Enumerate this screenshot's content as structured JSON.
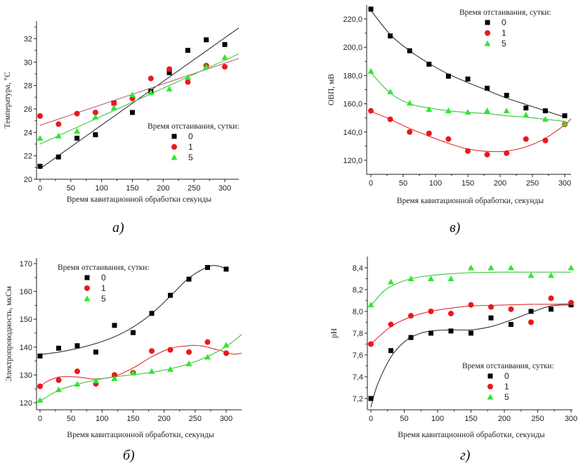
{
  "chart_data": [
    {
      "id": "a",
      "type": "scatter",
      "caption": "а)",
      "title": "",
      "xlabel": "Время кавитационной обработки секунды",
      "ylabel": "Температура, °С",
      "xlim": [
        -5,
        325
      ],
      "ylim": [
        20,
        33
      ],
      "xticks": [
        0,
        50,
        100,
        150,
        200,
        250,
        300
      ],
      "yticks": [
        20,
        22,
        24,
        26,
        28,
        30,
        32
      ],
      "ytick_labels": [
        "20",
        "22",
        "24",
        "26",
        "28",
        "30",
        "32"
      ],
      "legend": {
        "title": "Время отстаивания, сутки:",
        "placement": "center-right"
      },
      "fit": "linear",
      "x": [
        0,
        30,
        60,
        90,
        120,
        150,
        180,
        210,
        240,
        270,
        300
      ],
      "series": [
        {
          "name": "0",
          "marker": "square",
          "color": "#000000",
          "line_color": "#333333",
          "values": [
            21.1,
            21.9,
            23.5,
            23.8,
            26.5,
            25.7,
            27.5,
            29.1,
            31.0,
            31.9,
            31.5
          ],
          "fit_line": [
            [
              0,
              20.9
            ],
            [
              325,
              33.0
            ]
          ]
        },
        {
          "name": "1",
          "marker": "circle",
          "color": "#e8191c",
          "line_color": "#c06070",
          "values": [
            25.4,
            24.7,
            25.6,
            25.7,
            26.5,
            26.9,
            28.6,
            29.4,
            28.3,
            29.7,
            29.6
          ],
          "fit_line": [
            [
              0,
              24.6
            ],
            [
              325,
              30.35
            ]
          ]
        },
        {
          "name": "5",
          "marker": "triangle",
          "color": "#2ee82e",
          "line_color": "#3cc43c",
          "values": [
            23.5,
            23.7,
            24.1,
            25.3,
            26.1,
            27.2,
            27.4,
            27.7,
            28.7,
            29.6,
            30.4
          ],
          "fit_line": [
            [
              0,
              23.0
            ],
            [
              325,
              30.75
            ]
          ]
        }
      ]
    },
    {
      "id": "v",
      "type": "scatter",
      "caption": "в)",
      "title": "",
      "xlabel": "Время кавитационной обработки, секунды",
      "ylabel": "ОВП, мВ",
      "xlim": [
        -5,
        310
      ],
      "ylim": [
        110,
        230
      ],
      "xticks": [
        0,
        50,
        100,
        150,
        200,
        250,
        300
      ],
      "yticks": [
        120,
        140,
        160,
        180,
        200,
        220
      ],
      "ytick_labels": [
        "120,0",
        "140,0",
        "160,0",
        "180,0",
        "200,0",
        "220,0"
      ],
      "legend": {
        "title": "Время отстаивания, сутки:",
        "placement": "top-right"
      },
      "fit": "smooth",
      "x": [
        0,
        30,
        60,
        90,
        120,
        150,
        180,
        210,
        240,
        270,
        300
      ],
      "series": [
        {
          "name": "0",
          "marker": "square",
          "color": "#000000",
          "line_color": "#333333",
          "values": [
            227,
            208,
            197.5,
            188,
            179.5,
            177.5,
            171,
            166,
            157,
            155,
            151.5
          ],
          "fit_line": [
            [
              0,
              226
            ],
            [
              30,
              209
            ],
            [
              60,
              197.5
            ],
            [
              90,
              188.5
            ],
            [
              120,
              181
            ],
            [
              150,
              175
            ],
            [
              180,
              169.5
            ],
            [
              210,
              164
            ],
            [
              240,
              159.5
            ],
            [
              270,
              155
            ],
            [
              300,
              150.5
            ]
          ]
        },
        {
          "name": "1",
          "marker": "circle",
          "color": "#e8191c",
          "line_color": "#e03030",
          "values": [
            155,
            149,
            140,
            139,
            135,
            126.5,
            124,
            125,
            135,
            134,
            145.5
          ],
          "fit_line": [
            [
              0,
              154.5
            ],
            [
              30,
              149
            ],
            [
              60,
              142.5
            ],
            [
              90,
              137
            ],
            [
              120,
              132
            ],
            [
              150,
              128
            ],
            [
              180,
              126.3
            ],
            [
              210,
              126.5
            ],
            [
              240,
              129.5
            ],
            [
              270,
              135.5
            ],
            [
              300,
              145
            ],
            [
              310,
              149.5
            ]
          ]
        },
        {
          "name": "5",
          "marker": "triangle",
          "color": "#2ee82e",
          "line_color": "#3cc43c",
          "values": [
            183,
            168.5,
            160.5,
            156,
            155,
            154,
            155,
            155,
            152,
            149,
            146
          ],
          "fit_line": [
            [
              0,
              182
            ],
            [
              30,
              167.5
            ],
            [
              60,
              160
            ],
            [
              90,
              157
            ],
            [
              120,
              155
            ],
            [
              150,
              153.8
            ],
            [
              180,
              153
            ],
            [
              210,
              151.5
            ],
            [
              240,
              150.5
            ],
            [
              270,
              149
            ],
            [
              300,
              147.5
            ]
          ]
        }
      ]
    },
    {
      "id": "b",
      "type": "scatter",
      "caption": "б)",
      "title": "",
      "xlabel": "Время кавитационной обработки, секунды",
      "ylabel": "Электропроводность, мкСм",
      "xlim": [
        -5,
        325
      ],
      "ylim": [
        117,
        172
      ],
      "xticks": [
        0,
        50,
        100,
        150,
        200,
        250,
        300
      ],
      "yticks": [
        120,
        130,
        140,
        150,
        160,
        170
      ],
      "ytick_labels": [
        "120",
        "130",
        "140",
        "150",
        "160",
        "170"
      ],
      "legend": {
        "title": "Время отстаивания, сутки:",
        "placement": "top-left"
      },
      "fit": "smooth",
      "x": [
        0,
        30,
        60,
        90,
        120,
        150,
        180,
        210,
        240,
        270,
        300
      ],
      "series": [
        {
          "name": "0",
          "marker": "square",
          "color": "#000000",
          "line_color": "#333333",
          "values": [
            136.8,
            139.6,
            140.5,
            138.2,
            147.8,
            145.2,
            152.1,
            158.6,
            164.4,
            168.6,
            168.0
          ],
          "fit_line": [
            [
              0,
              137.3
            ],
            [
              30,
              138.2
            ],
            [
              60,
              139.5
            ],
            [
              90,
              141.3
            ],
            [
              120,
              143.7
            ],
            [
              150,
              147.2
            ],
            [
              180,
              152.0
            ],
            [
              210,
              158.3
            ],
            [
              240,
              164.8
            ],
            [
              270,
              168.8
            ],
            [
              285,
              169.2
            ],
            [
              300,
              168.2
            ]
          ]
        },
        {
          "name": "1",
          "marker": "circle",
          "color": "#e8191c",
          "line_color": "#e03030",
          "values": [
            125.9,
            128.1,
            131.3,
            126.8,
            130.0,
            130.8,
            138.6,
            139.0,
            138.2,
            141.8,
            137.8
          ],
          "fit_line": [
            [
              0,
              125.5
            ],
            [
              10,
              127.5
            ],
            [
              30,
              129.2
            ],
            [
              50,
              129.4
            ],
            [
              70,
              129.0
            ],
            [
              90,
              128.5
            ],
            [
              120,
              129.5
            ],
            [
              150,
              132.5
            ],
            [
              180,
              136.5
            ],
            [
              210,
              139.5
            ],
            [
              240,
              140.5
            ],
            [
              260,
              140.4
            ],
            [
              290,
              138.8
            ],
            [
              310,
              137.5
            ],
            [
              325,
              137.8
            ]
          ]
        },
        {
          "name": "5",
          "marker": "triangle",
          "color": "#2ee82e",
          "line_color": "#3cc43c",
          "values": [
            120.9,
            124.7,
            126.7,
            127.9,
            128.7,
            130.7,
            131.3,
            132.0,
            134.0,
            136.4,
            140.7
          ],
          "fit_line": [
            [
              0,
              120.6
            ],
            [
              30,
              124.5
            ],
            [
              60,
              126.6
            ],
            [
              90,
              128.2
            ],
            [
              120,
              129.3
            ],
            [
              150,
              130.1
            ],
            [
              180,
              130.9
            ],
            [
              210,
              132.2
            ],
            [
              240,
              134.0
            ],
            [
              270,
              136.6
            ],
            [
              300,
              140.2
            ],
            [
              325,
              144.5
            ]
          ]
        }
      ]
    },
    {
      "id": "g",
      "type": "scatter",
      "caption": "г)",
      "title": "",
      "xlabel": "Время кавитационной обработки, секунды",
      "ylabel": "pH",
      "xlim": [
        -5,
        300
      ],
      "ylim": [
        7.12,
        8.5
      ],
      "xticks": [
        0,
        50,
        100,
        150,
        200,
        250,
        300
      ],
      "yticks": [
        7.2,
        7.4,
        7.6,
        7.8,
        8.0,
        8.2,
        8.4
      ],
      "ytick_labels": [
        "7,2",
        "7,4",
        "7,6",
        "7,8",
        "8,0",
        "8,2",
        "8,4"
      ],
      "legend": {
        "title": "Время отстаивания, сутки:",
        "placement": "bottom-right"
      },
      "fit": "smooth",
      "x": [
        0,
        30,
        60,
        90,
        120,
        150,
        180,
        210,
        240,
        270,
        300
      ],
      "series": [
        {
          "name": "0",
          "marker": "square",
          "color": "#000000",
          "line_color": "#333333",
          "values": [
            7.2,
            7.64,
            7.76,
            7.8,
            7.82,
            7.8,
            7.94,
            7.88,
            8.0,
            8.02,
            8.06
          ],
          "fit_line": [
            [
              0,
              7.12
            ],
            [
              10,
              7.33
            ],
            [
              30,
              7.58
            ],
            [
              50,
              7.72
            ],
            [
              70,
              7.79
            ],
            [
              90,
              7.82
            ],
            [
              120,
              7.83
            ],
            [
              150,
              7.83
            ],
            [
              180,
              7.86
            ],
            [
              210,
              7.92
            ],
            [
              240,
              7.99
            ],
            [
              270,
              8.05
            ],
            [
              300,
              8.06
            ]
          ]
        },
        {
          "name": "1",
          "marker": "circle",
          "color": "#e8191c",
          "line_color": "#e03030",
          "values": [
            7.7,
            7.88,
            7.96,
            8.0,
            7.98,
            8.06,
            8.04,
            8.02,
            7.9,
            8.12,
            8.08
          ],
          "fit_line": [
            [
              0,
              7.7
            ],
            [
              30,
              7.86
            ],
            [
              60,
              7.95
            ],
            [
              90,
              8.0
            ],
            [
              120,
              8.03
            ],
            [
              150,
              8.05
            ],
            [
              180,
              8.055
            ],
            [
              210,
              8.06
            ],
            [
              240,
              8.065
            ],
            [
              270,
              8.065
            ],
            [
              300,
              8.07
            ]
          ]
        },
        {
          "name": "5",
          "marker": "triangle",
          "color": "#2ee82e",
          "line_color": "#3cc43c",
          "values": [
            8.06,
            8.27,
            8.3,
            8.3,
            8.3,
            8.4,
            8.4,
            8.4,
            8.33,
            8.33,
            8.4
          ],
          "fit_line": [
            [
              0,
              8.05
            ],
            [
              15,
              8.16
            ],
            [
              30,
              8.23
            ],
            [
              60,
              8.3
            ],
            [
              90,
              8.33
            ],
            [
              120,
              8.345
            ],
            [
              150,
              8.355
            ],
            [
              200,
              8.36
            ],
            [
              250,
              8.36
            ],
            [
              300,
              8.36
            ]
          ]
        }
      ]
    }
  ]
}
